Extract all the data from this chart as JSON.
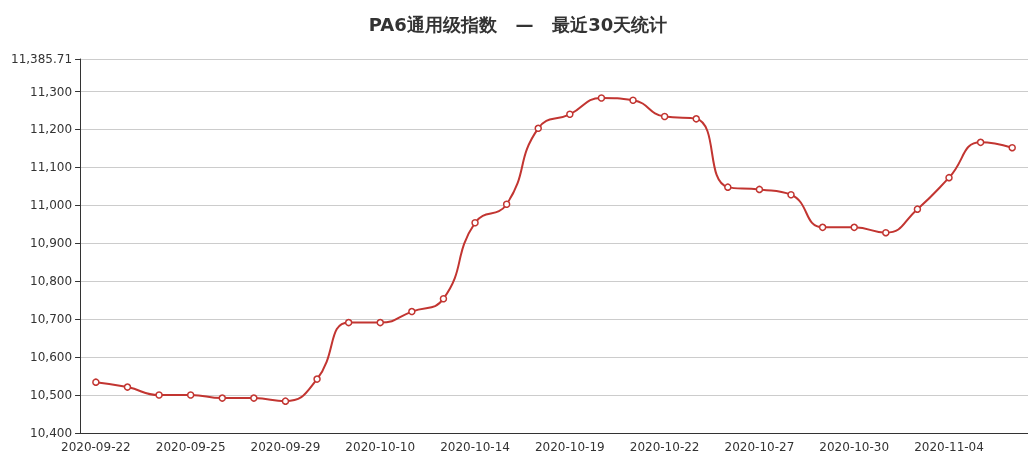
{
  "chart_data": {
    "type": "line",
    "title": "PA6通用级指数   —   最近30天统计",
    "categories": [
      "2020-09-22",
      null,
      null,
      "2020-09-25",
      null,
      null,
      "2020-09-29",
      null,
      null,
      "2020-10-10",
      null,
      null,
      "2020-10-14",
      null,
      null,
      "2020-10-19",
      null,
      null,
      "2020-10-22",
      null,
      null,
      "2020-10-27",
      null,
      null,
      "2020-10-30",
      null,
      null,
      "2020-11-04",
      null,
      null
    ],
    "series": [
      {
        "color": "#c23531",
        "values": [
          10534,
          10521,
          10500,
          10500,
          10492,
          10492,
          10484,
          10542,
          10691,
          10691,
          10720,
          10754,
          10954,
          11003,
          11203,
          11240,
          11283,
          11277,
          11234,
          11228,
          11048,
          11042,
          11028,
          10942,
          10942,
          10928,
          10990,
          11073,
          11166,
          11152
        ]
      }
    ],
    "ylim": [
      10400,
      11385.71
    ],
    "yticks": [
      {
        "value": 10400,
        "label": "10,400"
      },
      {
        "value": 10500,
        "label": "10,500"
      },
      {
        "value": 10600,
        "label": "10,600"
      },
      {
        "value": 10700,
        "label": "10,700"
      },
      {
        "value": 10800,
        "label": "10,800"
      },
      {
        "value": 10900,
        "label": "10,900"
      },
      {
        "value": 11000,
        "label": "11,000"
      },
      {
        "value": 11100,
        "label": "11,100"
      },
      {
        "value": 11200,
        "label": "11,200"
      },
      {
        "value": 11300,
        "label": "11,300"
      },
      {
        "value": 11385.71,
        "label": "11,385.71"
      }
    ],
    "grid": "y",
    "marker": "circle",
    "line_style": "solid"
  }
}
